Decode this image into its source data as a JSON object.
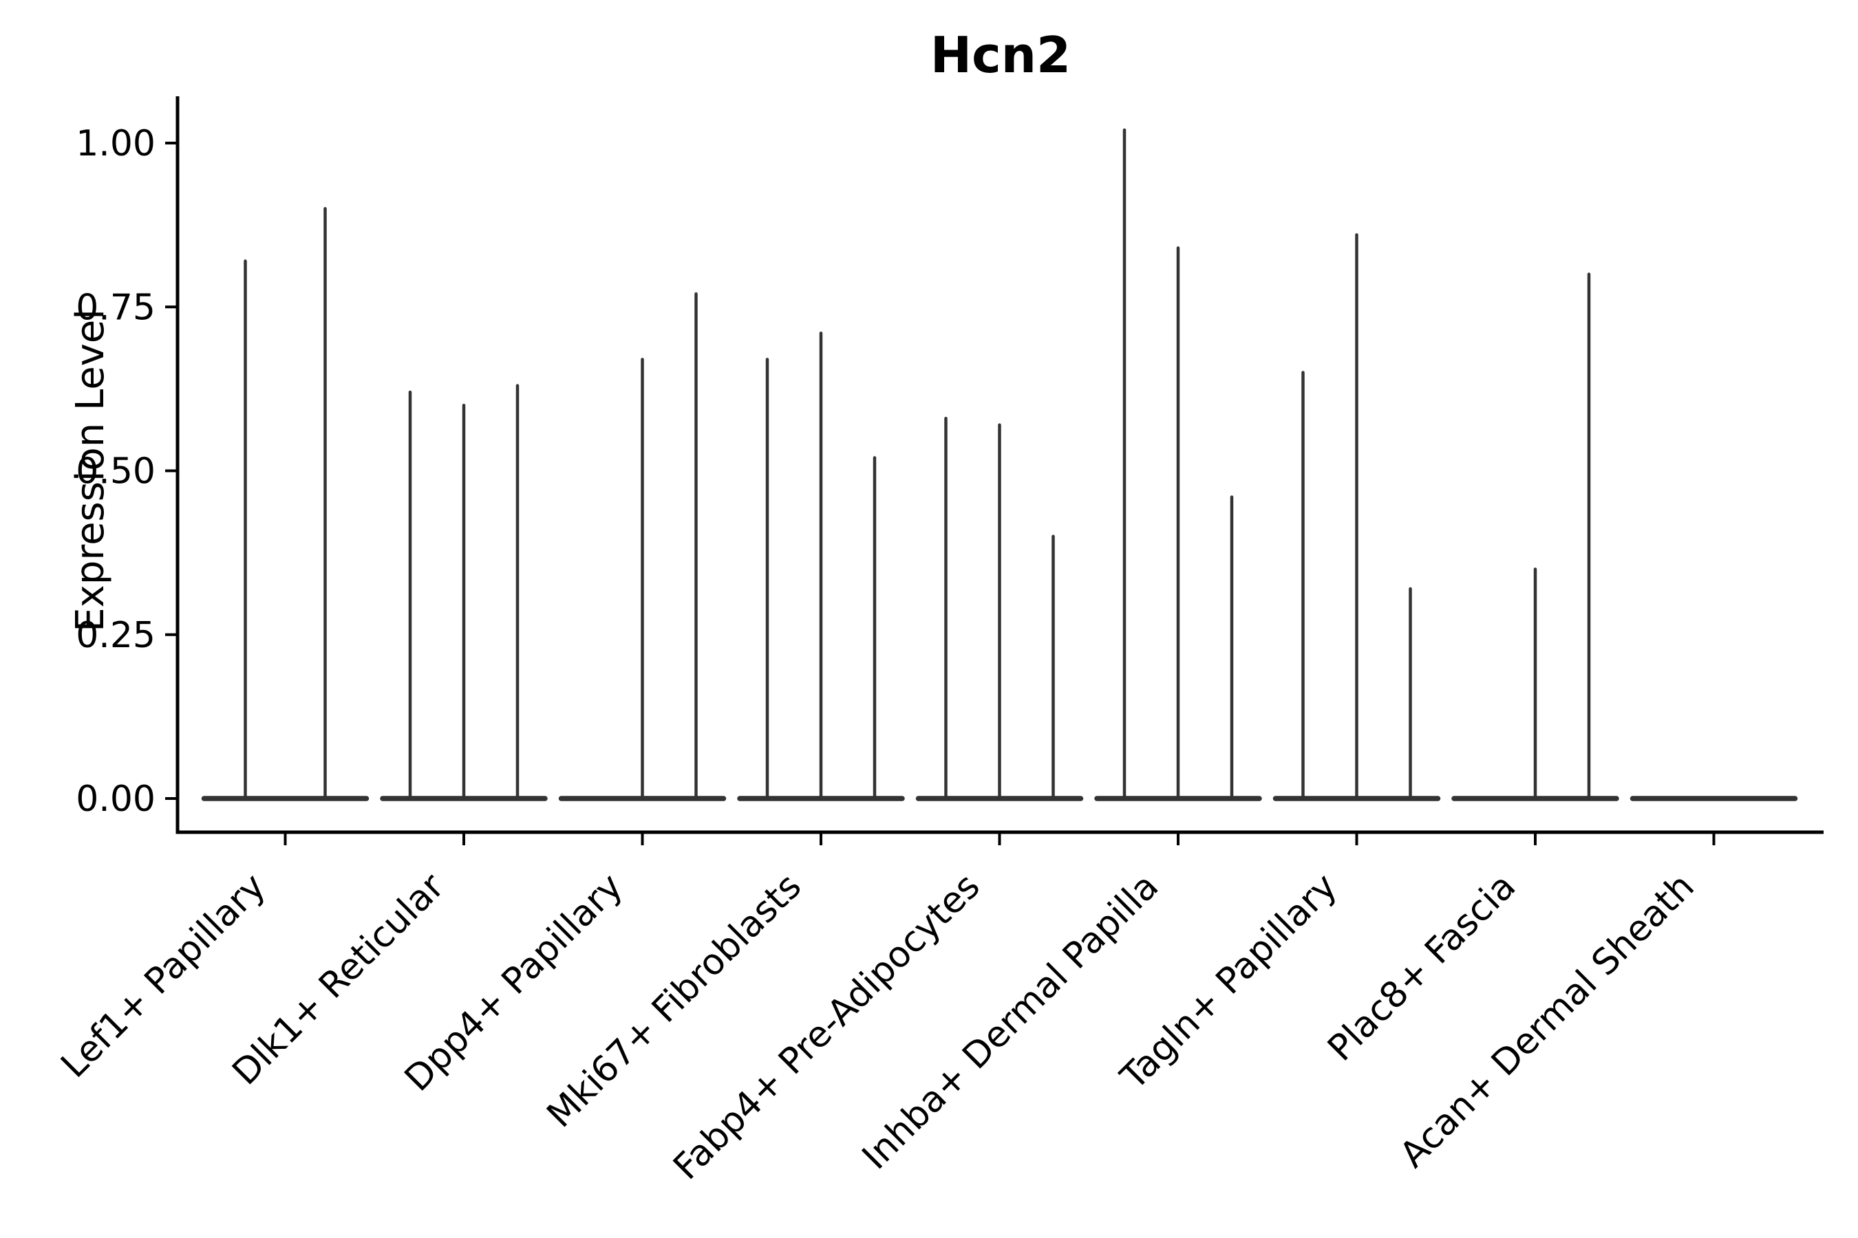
{
  "title": "Hcn2",
  "y_axis": {
    "label": "Expression Level"
  },
  "chart_data": {
    "type": "violin",
    "title": "Hcn2",
    "subtitle": "",
    "xlabel": "",
    "ylabel": "Expression Level",
    "ylim": [
      0,
      1.07
    ],
    "grid": false,
    "legend": "none",
    "note": "Seurat-style violin plot; violins are collapsed to flat baselines at 0 with narrow density spikes rising to the listed expression values",
    "y_ticks": [
      {
        "value": 0.0,
        "label": "0.00"
      },
      {
        "value": 0.25,
        "label": "0.25"
      },
      {
        "value": 0.5,
        "label": "0.50"
      },
      {
        "value": 0.75,
        "label": "0.75"
      },
      {
        "value": 1.0,
        "label": "1.00"
      }
    ],
    "categories": [
      "Lef1+ Papillary",
      "Dlk1+ Reticular",
      "Dpp4+ Papillary",
      "Mki67+ Fibroblasts",
      "Fabp4+ Pre-Adipocytes",
      "Inhba+ Dermal Papilla",
      "Tagln+ Papillary",
      "Plac8+ Fascia",
      "Acan+ Dermal Sheath"
    ],
    "series": [
      {
        "category": "Lef1+ Papillary",
        "spikes": [
          {
            "dx": -58,
            "value": 0.82
          },
          {
            "dx": 58,
            "value": 0.9
          }
        ]
      },
      {
        "category": "Dlk1+ Reticular",
        "spikes": [
          {
            "dx": -78,
            "value": 0.62
          },
          {
            "dx": 0,
            "value": 0.6
          },
          {
            "dx": 78,
            "value": 0.63
          }
        ]
      },
      {
        "category": "Dpp4+ Papillary",
        "spikes": [
          {
            "dx": 0,
            "value": 0.67
          },
          {
            "dx": 78,
            "value": 0.77
          }
        ]
      },
      {
        "category": "Mki67+ Fibroblasts",
        "spikes": [
          {
            "dx": -78,
            "value": 0.67
          },
          {
            "dx": 0,
            "value": 0.71
          },
          {
            "dx": 78,
            "value": 0.52
          }
        ]
      },
      {
        "category": "Fabp4+ Pre-Adipocytes",
        "spikes": [
          {
            "dx": -78,
            "value": 0.58
          },
          {
            "dx": 0,
            "value": 0.57
          },
          {
            "dx": 78,
            "value": 0.4
          }
        ]
      },
      {
        "category": "Inhba+ Dermal Papilla",
        "spikes": [
          {
            "dx": -78,
            "value": 1.02
          },
          {
            "dx": 0,
            "value": 0.84
          },
          {
            "dx": 78,
            "value": 0.46
          }
        ]
      },
      {
        "category": "Tagln+ Papillary",
        "spikes": [
          {
            "dx": -78,
            "value": 0.65
          },
          {
            "dx": 0,
            "value": 0.86
          },
          {
            "dx": 78,
            "value": 0.32
          }
        ]
      },
      {
        "category": "Plac8+ Fascia",
        "spikes": [
          {
            "dx": 0,
            "value": 0.35
          },
          {
            "dx": 78,
            "value": 0.8
          }
        ]
      },
      {
        "category": "Acan+ Dermal Sheath",
        "spikes": []
      }
    ],
    "colors": {
      "violin": "#333333",
      "axis": "#000000",
      "text": "#000000",
      "background": "#ffffff"
    }
  }
}
